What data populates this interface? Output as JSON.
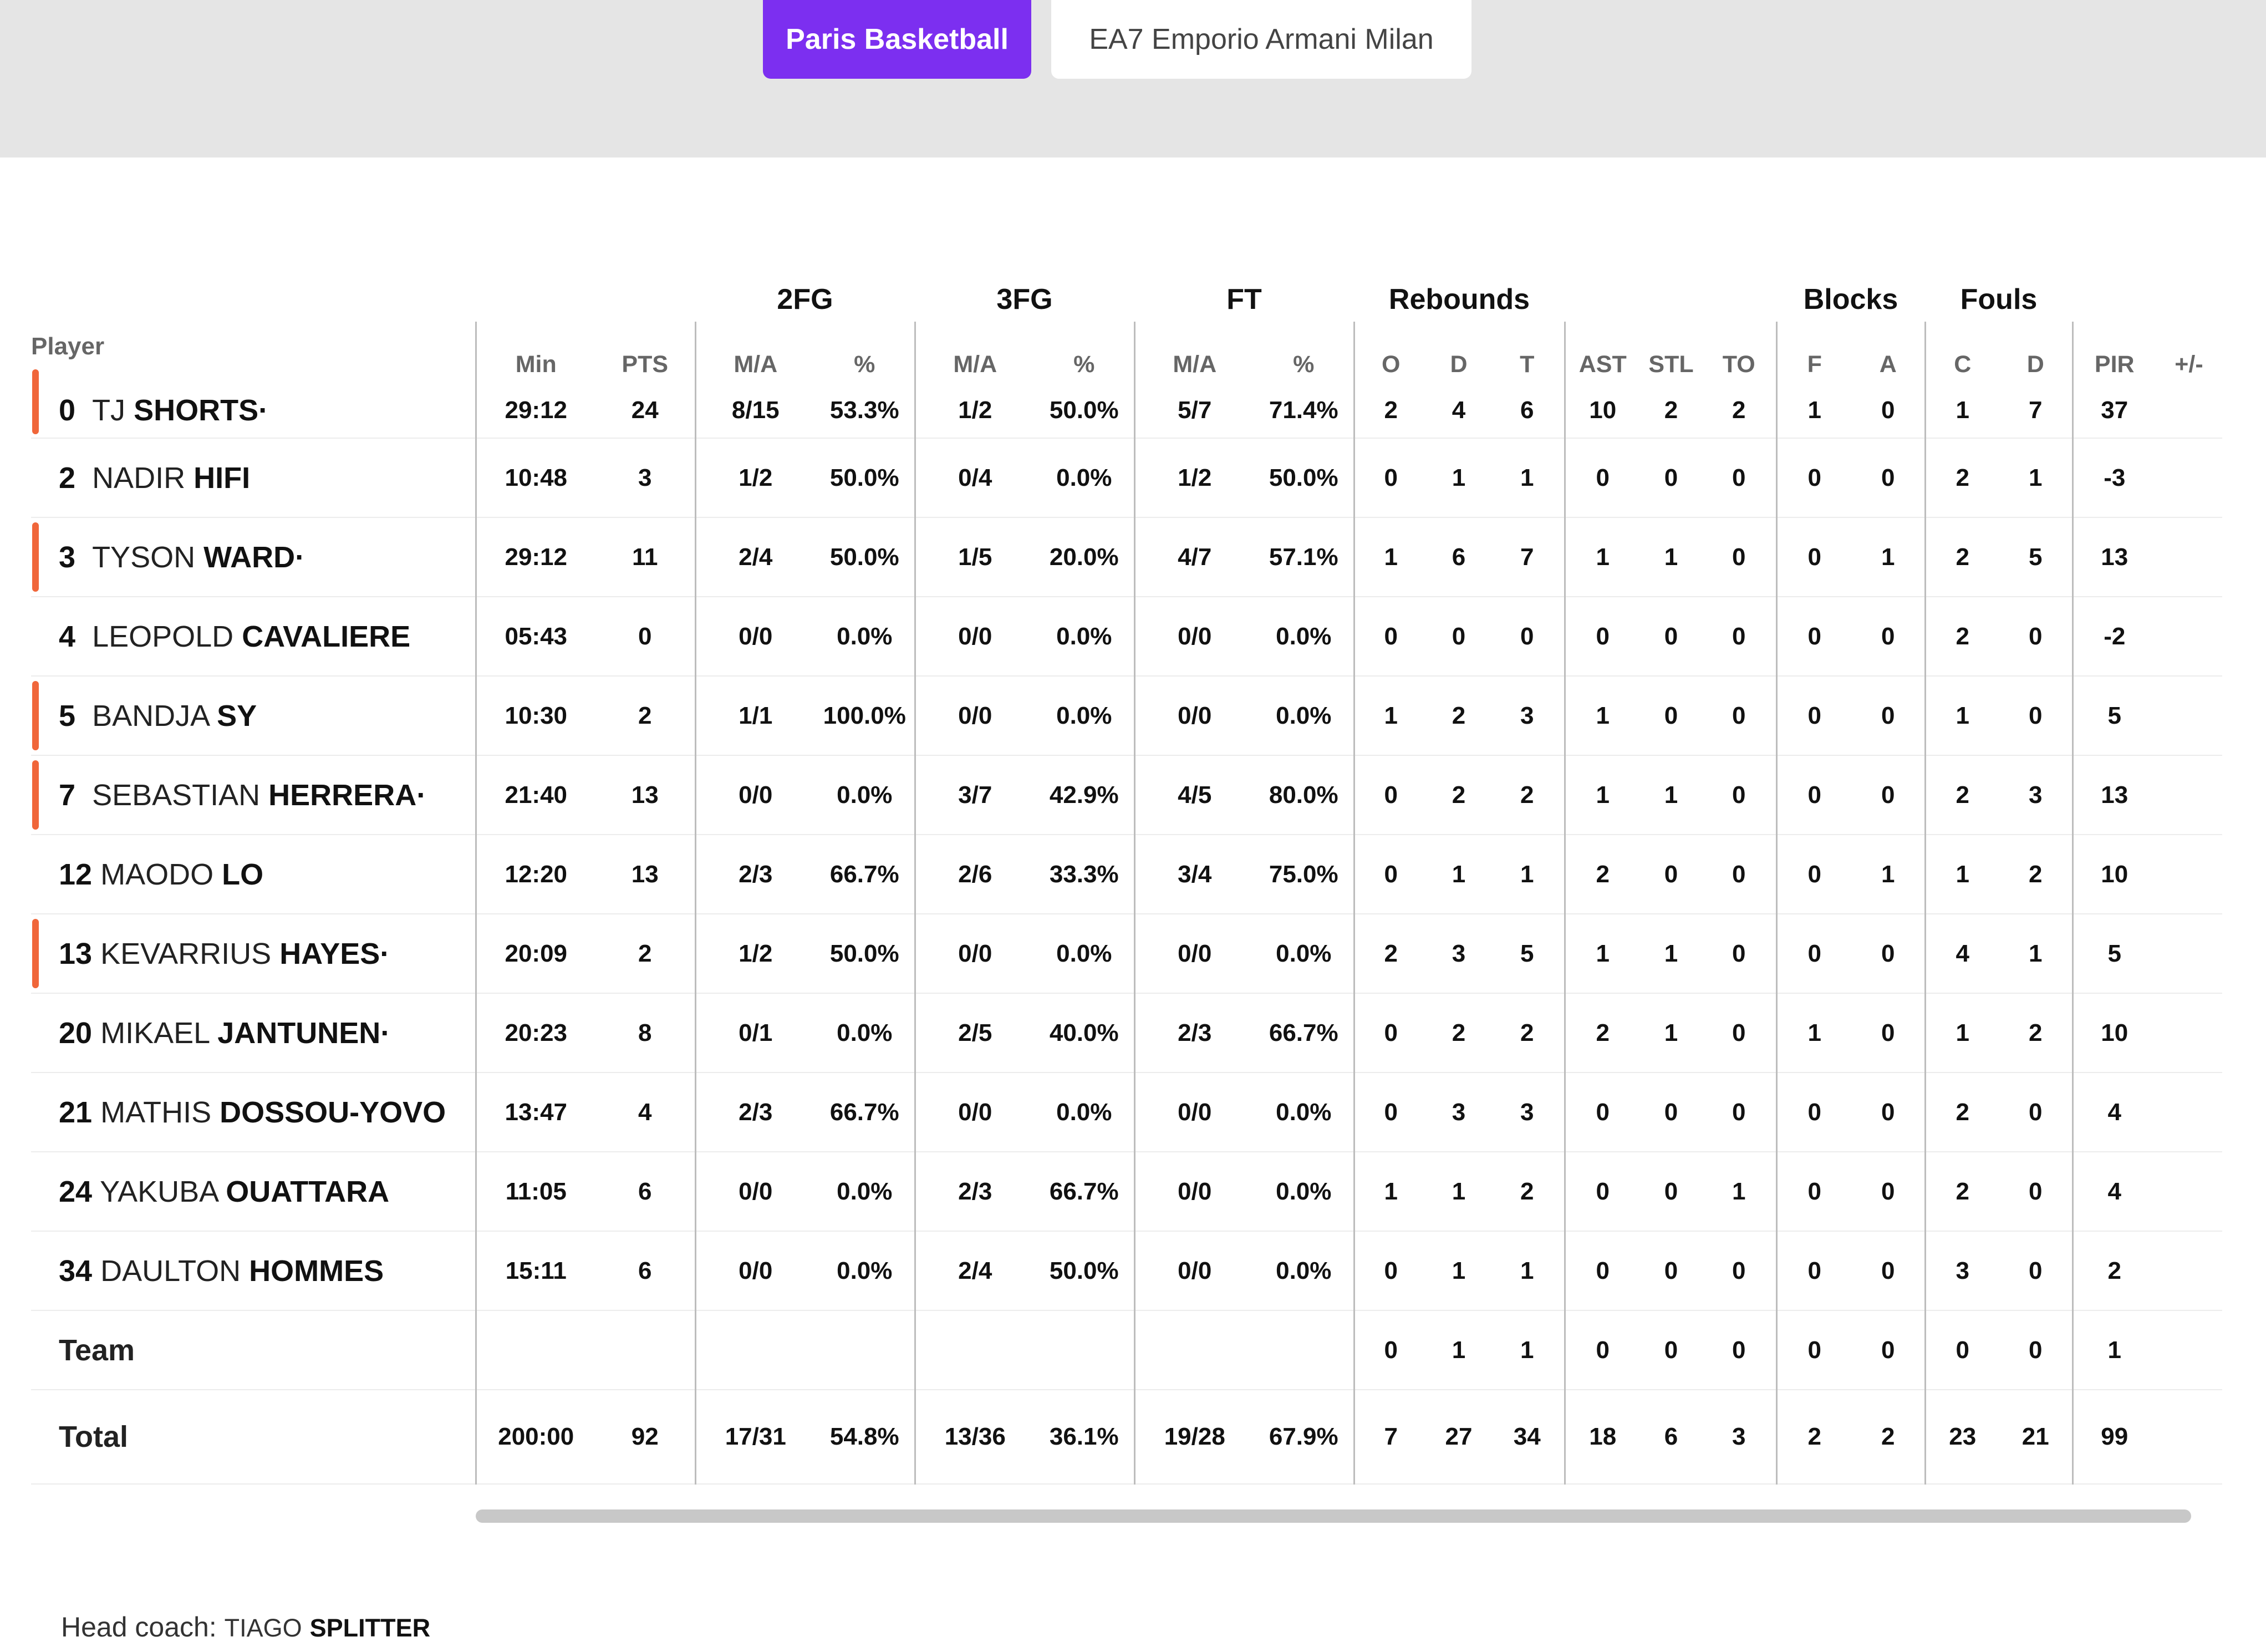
{
  "team_tabs": [
    {
      "label": "Paris Basketball",
      "active": true
    },
    {
      "label": "EA7 Emporio Armani Milan",
      "active": false
    }
  ],
  "colors": {
    "accent": "#7c2ff0",
    "starter_marker": "#f0663a"
  },
  "groups": {
    "fg2": "2FG",
    "fg3": "3FG",
    "ft": "FT",
    "reb": "Rebounds",
    "blk": "Blocks",
    "fouls": "Fouls"
  },
  "headers": {
    "player": "Player",
    "min": "Min",
    "pts": "PTS",
    "ma": "M/A",
    "pct": "%",
    "o": "O",
    "d": "D",
    "t": "T",
    "ast": "AST",
    "stl": "STL",
    "to": "TO",
    "f": "F",
    "a": "A",
    "c": "C",
    "fd": "D",
    "pir": "PIR",
    "pm": "+/-"
  },
  "players": [
    {
      "num": "0",
      "first": "TJ",
      "last": "SHORTS·",
      "starter": true,
      "min": "29:12",
      "pts": "24",
      "fg2": "8/15",
      "fg2p": "53.3%",
      "fg3": "1/2",
      "fg3p": "50.0%",
      "ft": "5/7",
      "ftp": "71.4%",
      "o": "2",
      "d": "4",
      "t": "6",
      "ast": "10",
      "stl": "2",
      "to": "2",
      "f": "1",
      "a": "0",
      "c": "1",
      "fd": "7",
      "pir": "37"
    },
    {
      "num": "2",
      "first": "NADIR",
      "last": "HIFI",
      "starter": false,
      "min": "10:48",
      "pts": "3",
      "fg2": "1/2",
      "fg2p": "50.0%",
      "fg3": "0/4",
      "fg3p": "0.0%",
      "ft": "1/2",
      "ftp": "50.0%",
      "o": "0",
      "d": "1",
      "t": "1",
      "ast": "0",
      "stl": "0",
      "to": "0",
      "f": "0",
      "a": "0",
      "c": "2",
      "fd": "1",
      "pir": "-3"
    },
    {
      "num": "3",
      "first": "TYSON",
      "last": "WARD·",
      "starter": true,
      "min": "29:12",
      "pts": "11",
      "fg2": "2/4",
      "fg2p": "50.0%",
      "fg3": "1/5",
      "fg3p": "20.0%",
      "ft": "4/7",
      "ftp": "57.1%",
      "o": "1",
      "d": "6",
      "t": "7",
      "ast": "1",
      "stl": "1",
      "to": "0",
      "f": "0",
      "a": "1",
      "c": "2",
      "fd": "5",
      "pir": "13"
    },
    {
      "num": "4",
      "first": "LEOPOLD",
      "last": "CAVALIERE",
      "starter": false,
      "min": "05:43",
      "pts": "0",
      "fg2": "0/0",
      "fg2p": "0.0%",
      "fg3": "0/0",
      "fg3p": "0.0%",
      "ft": "0/0",
      "ftp": "0.0%",
      "o": "0",
      "d": "0",
      "t": "0",
      "ast": "0",
      "stl": "0",
      "to": "0",
      "f": "0",
      "a": "0",
      "c": "2",
      "fd": "0",
      "pir": "-2"
    },
    {
      "num": "5",
      "first": "BANDJA",
      "last": "SY",
      "starter": true,
      "min": "10:30",
      "pts": "2",
      "fg2": "1/1",
      "fg2p": "100.0%",
      "fg3": "0/0",
      "fg3p": "0.0%",
      "ft": "0/0",
      "ftp": "0.0%",
      "o": "1",
      "d": "2",
      "t": "3",
      "ast": "1",
      "stl": "0",
      "to": "0",
      "f": "0",
      "a": "0",
      "c": "1",
      "fd": "0",
      "pir": "5"
    },
    {
      "num": "7",
      "first": "SEBASTIAN",
      "last": "HERRERA·",
      "starter": true,
      "min": "21:40",
      "pts": "13",
      "fg2": "0/0",
      "fg2p": "0.0%",
      "fg3": "3/7",
      "fg3p": "42.9%",
      "ft": "4/5",
      "ftp": "80.0%",
      "o": "0",
      "d": "2",
      "t": "2",
      "ast": "1",
      "stl": "1",
      "to": "0",
      "f": "0",
      "a": "0",
      "c": "2",
      "fd": "3",
      "pir": "13"
    },
    {
      "num": "12",
      "first": "MAODO",
      "last": "LO",
      "starter": false,
      "min": "12:20",
      "pts": "13",
      "fg2": "2/3",
      "fg2p": "66.7%",
      "fg3": "2/6",
      "fg3p": "33.3%",
      "ft": "3/4",
      "ftp": "75.0%",
      "o": "0",
      "d": "1",
      "t": "1",
      "ast": "2",
      "stl": "0",
      "to": "0",
      "f": "0",
      "a": "1",
      "c": "1",
      "fd": "2",
      "pir": "10"
    },
    {
      "num": "13",
      "first": "KEVARRIUS",
      "last": "HAYES·",
      "starter": true,
      "min": "20:09",
      "pts": "2",
      "fg2": "1/2",
      "fg2p": "50.0%",
      "fg3": "0/0",
      "fg3p": "0.0%",
      "ft": "0/0",
      "ftp": "0.0%",
      "o": "2",
      "d": "3",
      "t": "5",
      "ast": "1",
      "stl": "1",
      "to": "0",
      "f": "0",
      "a": "0",
      "c": "4",
      "fd": "1",
      "pir": "5"
    },
    {
      "num": "20",
      "first": "MIKAEL",
      "last": "JANTUNEN·",
      "starter": false,
      "min": "20:23",
      "pts": "8",
      "fg2": "0/1",
      "fg2p": "0.0%",
      "fg3": "2/5",
      "fg3p": "40.0%",
      "ft": "2/3",
      "ftp": "66.7%",
      "o": "0",
      "d": "2",
      "t": "2",
      "ast": "2",
      "stl": "1",
      "to": "0",
      "f": "1",
      "a": "0",
      "c": "1",
      "fd": "2",
      "pir": "10"
    },
    {
      "num": "21",
      "first": "MATHIS",
      "last": "DOSSOU-YOVO",
      "starter": false,
      "min": "13:47",
      "pts": "4",
      "fg2": "2/3",
      "fg2p": "66.7%",
      "fg3": "0/0",
      "fg3p": "0.0%",
      "ft": "0/0",
      "ftp": "0.0%",
      "o": "0",
      "d": "3",
      "t": "3",
      "ast": "0",
      "stl": "0",
      "to": "0",
      "f": "0",
      "a": "0",
      "c": "2",
      "fd": "0",
      "pir": "4"
    },
    {
      "num": "24",
      "first": "YAKUBA",
      "last": "OUATTARA",
      "starter": false,
      "min": "11:05",
      "pts": "6",
      "fg2": "0/0",
      "fg2p": "0.0%",
      "fg3": "2/3",
      "fg3p": "66.7%",
      "ft": "0/0",
      "ftp": "0.0%",
      "o": "1",
      "d": "1",
      "t": "2",
      "ast": "0",
      "stl": "0",
      "to": "1",
      "f": "0",
      "a": "0",
      "c": "2",
      "fd": "0",
      "pir": "4"
    },
    {
      "num": "34",
      "first": "DAULTON",
      "last": "HOMMES",
      "starter": false,
      "min": "15:11",
      "pts": "6",
      "fg2": "0/0",
      "fg2p": "0.0%",
      "fg3": "2/4",
      "fg3p": "50.0%",
      "ft": "0/0",
      "ftp": "0.0%",
      "o": "0",
      "d": "1",
      "t": "1",
      "ast": "0",
      "stl": "0",
      "to": "0",
      "f": "0",
      "a": "0",
      "c": "3",
      "fd": "0",
      "pir": "2"
    }
  ],
  "team_row": {
    "label": "Team",
    "o": "0",
    "d": "1",
    "t": "1",
    "ast": "0",
    "stl": "0",
    "to": "0",
    "f": "0",
    "a": "0",
    "c": "0",
    "fd": "0",
    "pir": "1"
  },
  "total_row": {
    "label": "Total",
    "min": "200:00",
    "pts": "92",
    "fg2": "17/31",
    "fg2p": "54.8%",
    "fg3": "13/36",
    "fg3p": "36.1%",
    "ft": "19/28",
    "ftp": "67.9%",
    "o": "7",
    "d": "27",
    "t": "34",
    "ast": "18",
    "stl": "6",
    "to": "3",
    "f": "2",
    "a": "2",
    "c": "23",
    "fd": "21",
    "pir": "99"
  },
  "coach": {
    "label": "Head coach:",
    "first": "TIAGO",
    "last": "SPLITTER"
  }
}
